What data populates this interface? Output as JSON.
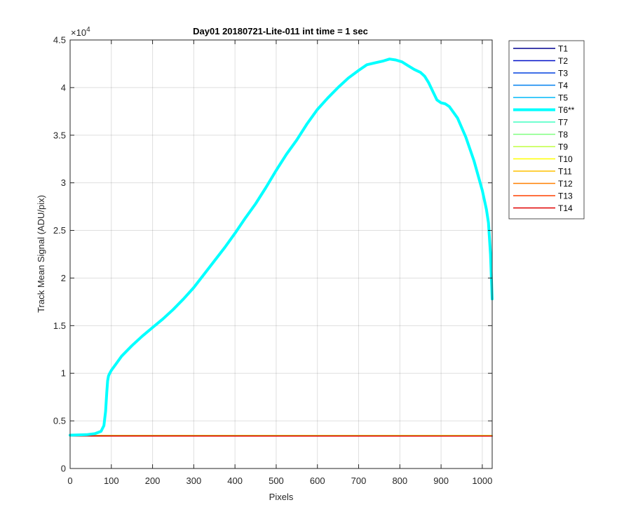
{
  "chart_data": {
    "type": "line",
    "title": "Day01 20180721-Lite-011 int time = 1 sec",
    "xlabel": "Pixels",
    "ylabel": "Track Mean Signal (ADU/pix)",
    "xlim": [
      0,
      1024
    ],
    "ylim": [
      0,
      45000
    ],
    "xticks": [
      0,
      100,
      200,
      300,
      400,
      500,
      600,
      700,
      800,
      900,
      1000
    ],
    "xtick_labels": [
      "0",
      "100",
      "200",
      "300",
      "400",
      "500",
      "600",
      "700",
      "800",
      "900",
      "1000"
    ],
    "yticks": [
      0,
      5000,
      10000,
      15000,
      20000,
      25000,
      30000,
      35000,
      40000,
      45000
    ],
    "ytick_labels": [
      "0",
      "0.5",
      "1",
      "1.5",
      "2",
      "2.5",
      "3",
      "3.5",
      "4",
      "4.5"
    ],
    "y_multiplier": "×10",
    "y_exponent": "4",
    "grid": true,
    "legend_position": "outside-right-top",
    "series": [
      {
        "name": "T1",
        "color": "#00008f",
        "x": [
          0,
          1024
        ],
        "y": [
          3400,
          3400
        ]
      },
      {
        "name": "T2",
        "color": "#0010c8",
        "x": [
          0,
          1024
        ],
        "y": [
          3410,
          3400
        ]
      },
      {
        "name": "T3",
        "color": "#0040e0",
        "x": [
          0,
          1024
        ],
        "y": [
          3420,
          3410
        ]
      },
      {
        "name": "T4",
        "color": "#0080f0",
        "x": [
          0,
          1024
        ],
        "y": [
          3430,
          3420
        ]
      },
      {
        "name": "T5",
        "color": "#00b8f8",
        "x": [
          0,
          1024
        ],
        "y": [
          3440,
          3430
        ]
      },
      {
        "name": "T6**",
        "color": "#00ffff",
        "highlight": true,
        "x": [
          0,
          40,
          60,
          75,
          82,
          86,
          89,
          91,
          93,
          95,
          100,
          110,
          125,
          150,
          175,
          200,
          225,
          250,
          275,
          300,
          325,
          350,
          375,
          400,
          425,
          450,
          475,
          500,
          525,
          550,
          575,
          600,
          625,
          650,
          675,
          700,
          720,
          740,
          760,
          775,
          790,
          805,
          820,
          835,
          850,
          860,
          870,
          880,
          890,
          900,
          910,
          920,
          940,
          960,
          980,
          1000,
          1010,
          1015,
          1020,
          1024
        ],
        "y": [
          3500,
          3550,
          3650,
          3900,
          4500,
          6000,
          8000,
          9200,
          9700,
          9900,
          10300,
          10900,
          11800,
          12900,
          13900,
          14800,
          15700,
          16700,
          17800,
          19000,
          20400,
          21800,
          23200,
          24700,
          26300,
          27800,
          29500,
          31300,
          33000,
          34500,
          36200,
          37700,
          38900,
          40000,
          41000,
          41800,
          42400,
          42600,
          42800,
          43000,
          42900,
          42700,
          42300,
          41900,
          41600,
          41200,
          40500,
          39600,
          38700,
          38400,
          38300,
          38000,
          36800,
          34800,
          32300,
          29200,
          27200,
          25800,
          22500,
          17800
        ]
      },
      {
        "name": "T7",
        "color": "#40ffc0",
        "x": [
          0,
          1024
        ],
        "y": [
          3460,
          3450
        ]
      },
      {
        "name": "T8",
        "color": "#80ff80",
        "x": [
          0,
          1024
        ],
        "y": [
          3480,
          3470
        ]
      },
      {
        "name": "T9",
        "color": "#c0ff40",
        "x": [
          0,
          1024
        ],
        "y": [
          3470,
          3460
        ]
      },
      {
        "name": "T10",
        "color": "#ffff00",
        "x": [
          0,
          1024
        ],
        "y": [
          3450,
          3440
        ]
      },
      {
        "name": "T11",
        "color": "#ffc000",
        "x": [
          0,
          1024
        ],
        "y": [
          3440,
          3430
        ]
      },
      {
        "name": "T12",
        "color": "#ff8000",
        "x": [
          0,
          1024
        ],
        "y": [
          3430,
          3420
        ]
      },
      {
        "name": "T13",
        "color": "#ff4000",
        "x": [
          0,
          1024
        ],
        "y": [
          3420,
          3410
        ]
      },
      {
        "name": "T14",
        "color": "#e00000",
        "x": [
          0,
          1024
        ],
        "y": [
          3415,
          3405
        ]
      }
    ]
  }
}
